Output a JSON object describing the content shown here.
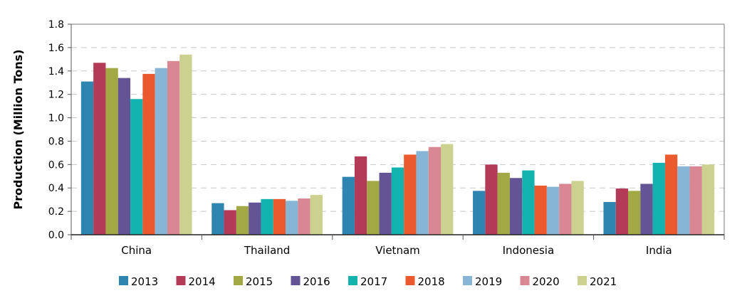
{
  "chart_data": {
    "type": "bar",
    "title": "",
    "xlabel": "",
    "ylabel": "Production (Million Tons)",
    "ylim": [
      0,
      1.8
    ],
    "yticks": [
      "0.0",
      "0.2",
      "0.4",
      "0.6",
      "0.8",
      "1.0",
      "1.2",
      "1.4",
      "1.6",
      "1.8"
    ],
    "grid": "horizontal dashed",
    "legend_position": "bottom",
    "categories": [
      "China",
      "Thailand",
      "Vietnam",
      "Indonesia",
      "India"
    ],
    "series": [
      {
        "name": "2013",
        "color": "#2e86b0",
        "values": [
          1.31,
          0.27,
          0.495,
          0.375,
          0.28
        ]
      },
      {
        "name": "2014",
        "color": "#b33b58",
        "values": [
          1.47,
          0.21,
          0.67,
          0.6,
          0.395
        ]
      },
      {
        "name": "2015",
        "color": "#a2a843",
        "values": [
          1.425,
          0.245,
          0.46,
          0.53,
          0.375
        ]
      },
      {
        "name": "2016",
        "color": "#625495",
        "values": [
          1.34,
          0.275,
          0.53,
          0.485,
          0.435
        ]
      },
      {
        "name": "2017",
        "color": "#12b3ae",
        "values": [
          1.16,
          0.305,
          0.575,
          0.55,
          0.615
        ]
      },
      {
        "name": "2018",
        "color": "#eb5a2f",
        "values": [
          1.375,
          0.305,
          0.685,
          0.42,
          0.685
        ]
      },
      {
        "name": "2019",
        "color": "#87b5d6",
        "values": [
          1.425,
          0.29,
          0.715,
          0.41,
          0.585
        ]
      },
      {
        "name": "2020",
        "color": "#d98893",
        "values": [
          1.485,
          0.31,
          0.75,
          0.435,
          0.585
        ]
      },
      {
        "name": "2021",
        "color": "#cdd18f",
        "values": [
          1.54,
          0.34,
          0.775,
          0.46,
          0.6
        ]
      }
    ]
  }
}
